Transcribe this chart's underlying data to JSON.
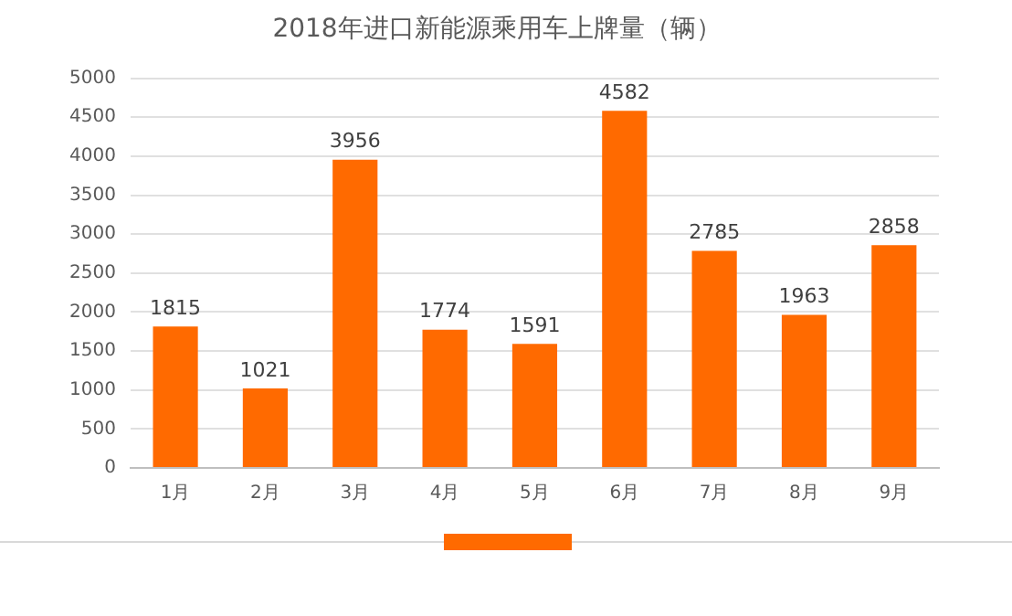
{
  "chart_data": {
    "type": "bar",
    "title": "2018年进口新能源乘用车上牌量（辆）",
    "categories": [
      "1月",
      "2月",
      "3月",
      "4月",
      "5月",
      "6月",
      "7月",
      "8月",
      "9月"
    ],
    "values": [
      1815,
      1021,
      3956,
      1774,
      1591,
      4582,
      2785,
      1963,
      2858
    ],
    "color": "#ff6a00",
    "ylim": [
      0,
      5000
    ],
    "yticks": [
      0,
      500,
      1000,
      1500,
      2000,
      2500,
      3000,
      3500,
      4000,
      4500,
      5000
    ],
    "grid": "y",
    "legend": false,
    "data_labels": true
  }
}
